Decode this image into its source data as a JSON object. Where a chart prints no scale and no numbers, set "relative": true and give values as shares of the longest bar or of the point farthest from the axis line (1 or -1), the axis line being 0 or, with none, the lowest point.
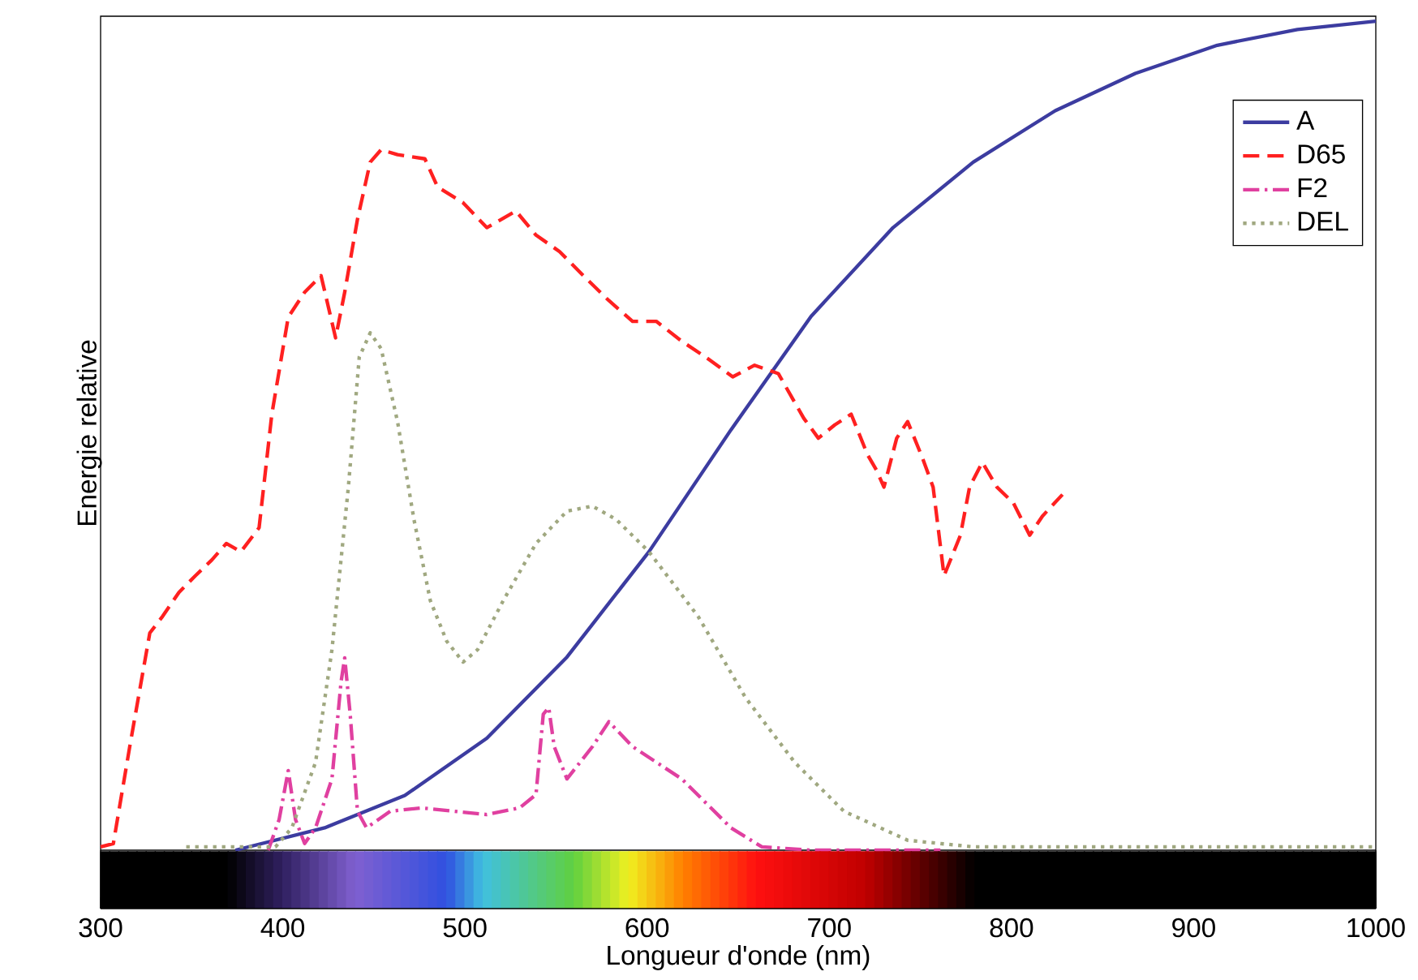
{
  "chart_data": {
    "type": "line",
    "xlabel": "Longueur d'onde (nm)",
    "ylabel": "Energie relative",
    "relative": true,
    "xlim": [
      300,
      1000
    ],
    "xticks": [
      300,
      400,
      500,
      600,
      700,
      800,
      900,
      1000
    ],
    "legend": "top right",
    "grid": false,
    "series": [
      {
        "name": "A",
        "color": "#3c3ca0",
        "line_style": "solid",
        "x": [
          374,
          423,
          467,
          512,
          556,
          601,
          646,
          690,
          735,
          779,
          824,
          868,
          913,
          957,
          1000
        ],
        "values": [
          0,
          0.027,
          0.066,
          0.135,
          0.233,
          0.36,
          0.507,
          0.644,
          0.751,
          0.83,
          0.892,
          0.937,
          0.971,
          0.99,
          1.0
        ]
      },
      {
        "name": "D65",
        "color": "#ff2020",
        "line_style": "dashed",
        "x": [
          300,
          307,
          316,
          327,
          334,
          343,
          352,
          361,
          369,
          377,
          387,
          394,
          403,
          412,
          421,
          429,
          434,
          441,
          448,
          454,
          463,
          478,
          485,
          499,
          512,
          528,
          539,
          552,
          565,
          579,
          592,
          605,
          619,
          632,
          647,
          659,
          672,
          686,
          694,
          703,
          712,
          721,
          726,
          730,
          737,
          743,
          751,
          757,
          763,
          772,
          777,
          784,
          792,
          801,
          810,
          817,
          828
        ],
        "values": [
          0.004,
          0.008,
          0.125,
          0.262,
          0.282,
          0.311,
          0.331,
          0.35,
          0.37,
          0.36,
          0.389,
          0.526,
          0.643,
          0.673,
          0.693,
          0.618,
          0.673,
          0.761,
          0.83,
          0.845,
          0.839,
          0.834,
          0.8,
          0.781,
          0.751,
          0.771,
          0.742,
          0.722,
          0.693,
          0.663,
          0.638,
          0.638,
          0.614,
          0.595,
          0.571,
          0.585,
          0.575,
          0.521,
          0.497,
          0.513,
          0.526,
          0.477,
          0.458,
          0.438,
          0.497,
          0.517,
          0.474,
          0.438,
          0.331,
          0.38,
          0.438,
          0.468,
          0.438,
          0.419,
          0.38,
          0.403,
          0.429
        ]
      },
      {
        "name": "F2",
        "color": "#e040a0",
        "line_style": "dashdotted",
        "x": [
          392,
          398,
          403,
          407,
          412,
          418,
          427,
          432,
          434,
          437,
          441,
          446,
          459,
          476,
          512,
          530,
          539,
          543,
          546,
          549,
          556,
          570,
          579,
          592,
          619,
          646,
          663,
          690,
          761
        ],
        "values": [
          0,
          0.037,
          0.096,
          0.037,
          0.008,
          0.027,
          0.086,
          0.203,
          0.232,
          0.164,
          0.047,
          0.027,
          0.047,
          0.051,
          0.043,
          0.051,
          0.067,
          0.164,
          0.172,
          0.125,
          0.086,
          0.125,
          0.155,
          0.125,
          0.086,
          0.027,
          0.004,
          0,
          0
        ]
      },
      {
        "name": "DEL",
        "color": "#a0a880",
        "line_style": "dotted",
        "x": [
          347,
          396,
          405,
          418,
          427,
          436,
          442,
          448,
          454,
          463,
          472,
          481,
          490,
          499,
          507,
          521,
          539,
          556,
          570,
          583,
          601,
          628,
          654,
          681,
          708,
          743,
          779,
          1000
        ],
        "values": [
          0.004,
          0.004,
          0.027,
          0.106,
          0.242,
          0.438,
          0.595,
          0.624,
          0.605,
          0.517,
          0.399,
          0.301,
          0.252,
          0.227,
          0.242,
          0.301,
          0.37,
          0.409,
          0.415,
          0.399,
          0.36,
          0.282,
          0.184,
          0.106,
          0.047,
          0.012,
          0.004,
          0.004
        ]
      }
    ]
  }
}
